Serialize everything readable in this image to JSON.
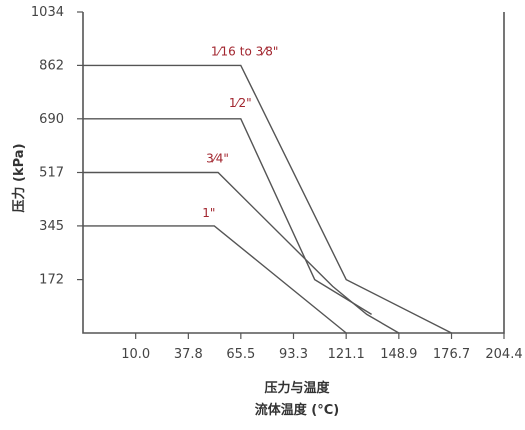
{
  "chart_data": {
    "type": "line",
    "title": "压力与温度",
    "xlabel": "流体温度 (°C)",
    "ylabel": "压力 (kPa)",
    "x_ticks": [
      "10.0",
      "37.8",
      "65.5",
      "93.3",
      "121.1",
      "148.9",
      "176.7",
      "204.4"
    ],
    "y_ticks": [
      "172",
      "345",
      "517",
      "690",
      "862",
      "1034"
    ],
    "xlim": [
      -17.8,
      204.4
    ],
    "ylim": [
      0,
      1034
    ],
    "grid": false,
    "series": [
      {
        "name": "1/16\" to 3/8\"",
        "x": [
          -17.8,
          65.5,
          121.1,
          176.7
        ],
        "y": [
          862,
          862,
          172,
          0
        ]
      },
      {
        "name": "1/2\"",
        "x": [
          -17.8,
          65.5,
          104.5,
          134.5
        ],
        "y": [
          690,
          690,
          172,
          60
        ]
      },
      {
        "name": "3/4\"",
        "x": [
          -17.8,
          53.5,
          114.0,
          132.0,
          148.9
        ],
        "y": [
          517,
          517,
          150,
          60,
          0
        ]
      },
      {
        "name": "1\"",
        "x": [
          -17.8,
          51.5,
          121.1
        ],
        "y": [
          345,
          345,
          0
        ]
      }
    ],
    "series_labels": [
      {
        "main": "1⁄16",
        "tail": "to 3⁄8\""
      },
      {
        "main": "1⁄2\"",
        "tail": ""
      },
      {
        "main": "3⁄4\"",
        "tail": ""
      },
      {
        "main": "1\"",
        "tail": ""
      }
    ],
    "colors": {
      "line": "#555555",
      "label": "#a2262f",
      "text": "#444444"
    }
  }
}
